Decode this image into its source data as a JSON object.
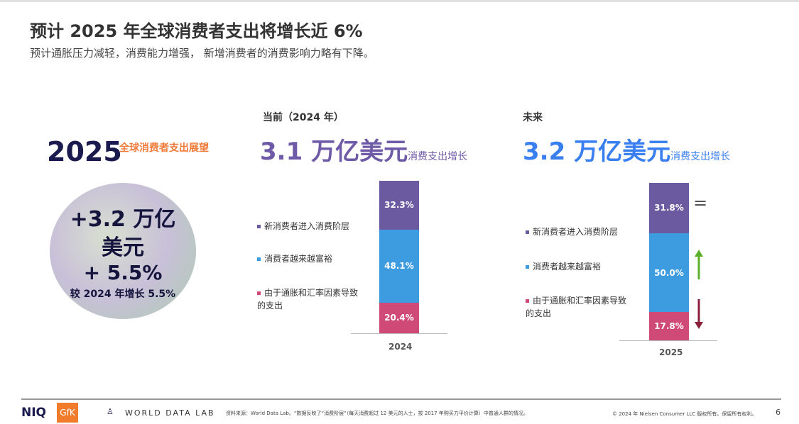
{
  "title": "预计 2025 年全球消费者支出将增长近 6%",
  "subtitle": "预计通胀压力减轻，消费能力增强， 新增消费者的消费影响力略有下降。",
  "left": {
    "year": "2025",
    "label": "全球消费者支出展望",
    "line1": "+3.2 万亿",
    "line2": "美元",
    "line3": "+ 5.5%",
    "line4": "较 2024 年增长 5.5%"
  },
  "current": {
    "label": "当前（2024 年）",
    "amount": "3.1 万亿美元",
    "suffix": "消费支出增长",
    "xlabel": "2024"
  },
  "future": {
    "label": "未来",
    "amount": "3.2 万亿美元",
    "suffix": "消费支出增长",
    "xlabel": "2025",
    "eq": "="
  },
  "legend": [
    "新消费者进入消费阶层",
    "消费者越来越富裕",
    "由于通胀和汇率因素导致的支出"
  ],
  "colors": {
    "purple": "#6b5aa0",
    "blue": "#3d9be0",
    "pink": "#d04a78",
    "green": "#5ab02a",
    "darkred": "#8a1f3c",
    "futureBlue": "#3a7ff0",
    "currentPurple": "#6e5aa6"
  },
  "chart_data": {
    "type": "bar",
    "stacked": true,
    "categories": [
      "2024",
      "2025"
    ],
    "series": [
      {
        "name": "由于通胀和汇率因素导致的支出",
        "values": [
          20.4,
          17.8
        ],
        "labels": [
          "20.4%",
          "17.8%"
        ]
      },
      {
        "name": "消费者越来越富裕",
        "values": [
          48.1,
          50.0
        ],
        "labels": [
          "48.1%",
          "50.0%"
        ]
      },
      {
        "name": "新消费者进入消费阶层",
        "values": [
          32.3,
          31.8
        ],
        "labels": [
          "32.3%",
          "31.8%"
        ]
      }
    ]
  },
  "footer": {
    "niq": "NIQ",
    "gfk": "GfK",
    "wdl": "WORLD DATA LAB",
    "source": "资料来源：World Data Lab。“数据反映了“消费阶层”（每天消费超过 12 美元的人士，按 2017 年购买力平价计算）中普通人群的情况。",
    "copyright": "© 2024 年 Nielsen Consumer LLC 版权所有。保留所有权利。",
    "page": "6"
  }
}
